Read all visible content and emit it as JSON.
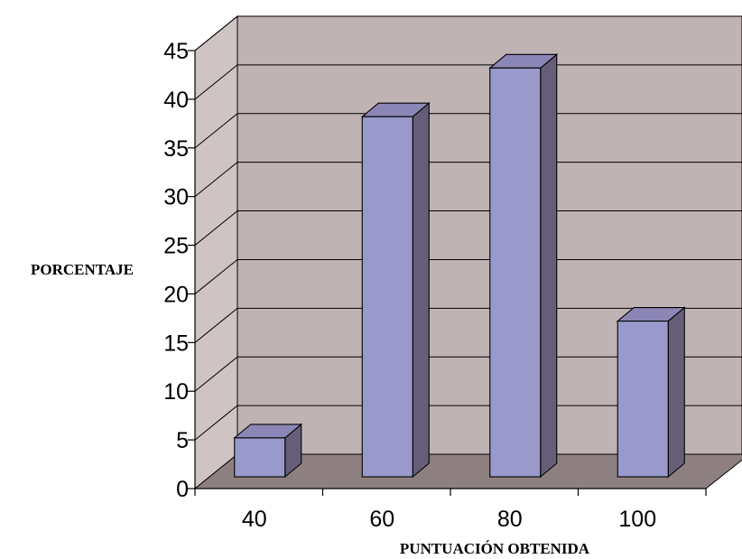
{
  "chart_data": {
    "type": "bar",
    "style": "3d-column",
    "categories": [
      "40",
      "60",
      "80",
      "100"
    ],
    "values": [
      4,
      37,
      42,
      16
    ],
    "xlabel": "PUNTUACIÓN OBTENIDA",
    "ylabel": "PORCENTAJE",
    "ylim": [
      0,
      45
    ],
    "yticks": [
      0,
      5,
      10,
      15,
      20,
      25,
      30,
      35,
      40,
      45
    ],
    "grid": true,
    "legend": "none",
    "colors": {
      "bar_front": "#9999cc",
      "bar_side": "#665e78",
      "bar_top": "#8c86b6",
      "back_wall": "#c0b3b3",
      "left_wall": "#cfc4c4",
      "floor": "#8e8080",
      "grid": "#000000"
    }
  }
}
